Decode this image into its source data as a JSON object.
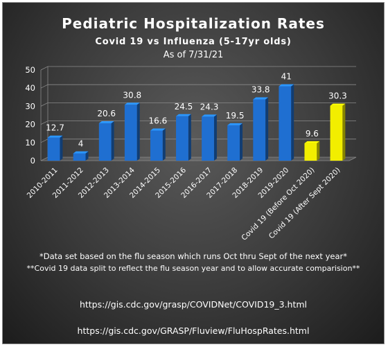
{
  "chart_data": {
    "type": "bar",
    "title": "Pediatric Hospitalization Rates",
    "subtitle": "Covid 19 vs Influenza (5-17yr olds)",
    "as_of": "As of 7/31/21",
    "categories": [
      "2010-2011",
      "2011-2012",
      "2012-2013",
      "2013-2014",
      "2014-2015",
      "2015-2016",
      "2016-2017",
      "2017-2018",
      "2018-2019",
      "2019-2020",
      "Covid 19 (Before Oct 2020)",
      "Covid 19 (After Sept 2020)"
    ],
    "values": [
      12.7,
      4,
      20.6,
      30.8,
      16.6,
      24.5,
      24.3,
      19.5,
      33.8,
      41,
      9.6,
      30.3
    ],
    "value_labels": [
      "12.7",
      "4",
      "20.6",
      "30.8",
      "16.6",
      "24.5",
      "24.3",
      "19.5",
      "33.8",
      "41",
      "9.6",
      "30.3"
    ],
    "bar_colors": [
      "#1f6fd1",
      "#1f6fd1",
      "#1f6fd1",
      "#1f6fd1",
      "#1f6fd1",
      "#1f6fd1",
      "#1f6fd1",
      "#1f6fd1",
      "#1f6fd1",
      "#1f6fd1",
      "#f2ee00",
      "#f2ee00"
    ],
    "y_ticks": [
      "0",
      "10",
      "20",
      "30",
      "40",
      "50"
    ],
    "ylim": [
      0,
      50
    ],
    "grid": true,
    "legend": "none"
  },
  "notes": {
    "line1": "*Data set based on the flu season which runs Oct thru Sept of the next year*",
    "line2": "**Covid 19 data split to reflect the flu season year and to allow accurate comparision**"
  },
  "links": {
    "covid": "https://gis.cdc.gov/grasp/COVIDNet/COVID19_3.html",
    "flu": "https://gis.cdc.gov/GRASP/Fluview/FluHospRates.html"
  },
  "colors": {
    "background": "#3a3a3a",
    "flu_bar": "#1f6fd1",
    "covid_bar": "#f2ee00",
    "text": "#ffffff"
  }
}
